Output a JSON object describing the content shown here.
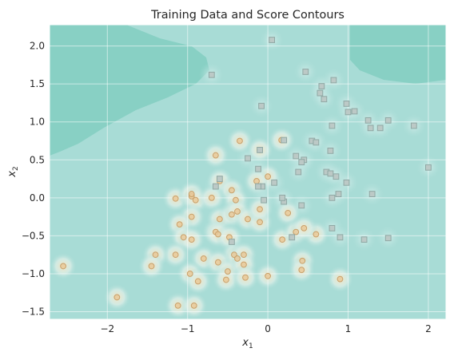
{
  "chart_data": {
    "type": "scatter",
    "title": "Training Data and Score Contours",
    "xlabel": {
      "base": "x",
      "sub": "1"
    },
    "ylabel": {
      "base": "x",
      "sub": "2"
    },
    "xlim": [
      -2.72,
      2.22
    ],
    "ylim": [
      -1.6,
      2.28
    ],
    "xticks": [
      -2,
      -1,
      0,
      1,
      2
    ],
    "yticks": [
      -1.5,
      -1.0,
      -0.5,
      0.0,
      0.5,
      1.0,
      1.5,
      2.0
    ],
    "xtick_labels": [
      "−2",
      "−1",
      "0",
      "1",
      "2"
    ],
    "ytick_labels": [
      "−1.5",
      "−1.0",
      "−0.5",
      "0.0",
      "0.5",
      "1.0",
      "1.5",
      "2.0"
    ],
    "grid": true,
    "colors": {
      "background": "#a8dcd6",
      "high_region": "#88d0c4",
      "hot_contour": "#f7e6c4",
      "circle_fill": "#e8c99a",
      "circle_edge": "#c9a06a",
      "square_fill": "#bcc9c6",
      "square_edge": "#8fa8a4"
    },
    "series": [
      {
        "marker": "circle",
        "points": [
          [
            -0.65,
            0.56
          ],
          [
            -0.35,
            0.75
          ],
          [
            0.17,
            0.76
          ],
          [
            -0.1,
            0.63
          ],
          [
            0.0,
            0.28
          ],
          [
            -0.14,
            0.22
          ],
          [
            -0.6,
            0.22
          ],
          [
            -1.15,
            -0.01
          ],
          [
            -0.95,
            0.02
          ],
          [
            -0.95,
            0.05
          ],
          [
            -0.9,
            -0.03
          ],
          [
            -0.45,
            0.1
          ],
          [
            -0.4,
            -0.03
          ],
          [
            -0.7,
            0.0
          ],
          [
            -0.95,
            -0.25
          ],
          [
            -0.6,
            -0.28
          ],
          [
            -0.45,
            -0.22
          ],
          [
            -0.38,
            -0.18
          ],
          [
            -1.1,
            -0.35
          ],
          [
            -0.65,
            -0.45
          ],
          [
            -0.62,
            -0.48
          ],
          [
            -0.25,
            -0.28
          ],
          [
            -0.1,
            -0.32
          ],
          [
            0.25,
            -0.2
          ],
          [
            -0.1,
            -0.15
          ],
          [
            -1.05,
            -0.52
          ],
          [
            -0.95,
            -0.55
          ],
          [
            -0.48,
            -0.52
          ],
          [
            -0.42,
            -0.75
          ],
          [
            -0.38,
            -0.8
          ],
          [
            -0.3,
            -0.75
          ],
          [
            0.18,
            -0.55
          ],
          [
            0.35,
            -0.45
          ],
          [
            0.6,
            -0.48
          ],
          [
            0.45,
            -0.4
          ],
          [
            -0.8,
            -0.8
          ],
          [
            -0.62,
            -0.85
          ],
          [
            -0.5,
            -0.97
          ],
          [
            -0.3,
            -0.88
          ],
          [
            -1.15,
            -0.75
          ],
          [
            -1.4,
            -0.75
          ],
          [
            -1.45,
            -0.9
          ],
          [
            -0.97,
            -1.0
          ],
          [
            -0.87,
            -1.1
          ],
          [
            -0.52,
            -1.08
          ],
          [
            -0.28,
            -1.05
          ],
          [
            0.0,
            -1.03
          ],
          [
            0.43,
            -0.83
          ],
          [
            0.42,
            -0.95
          ],
          [
            0.9,
            -1.07
          ],
          [
            -2.55,
            -0.9
          ],
          [
            -1.88,
            -1.31
          ],
          [
            -1.12,
            -1.42
          ],
          [
            -0.92,
            -1.42
          ]
        ]
      },
      {
        "marker": "square",
        "points": [
          [
            0.05,
            2.08
          ],
          [
            -0.7,
            1.62
          ],
          [
            0.47,
            1.66
          ],
          [
            0.82,
            1.55
          ],
          [
            0.67,
            1.47
          ],
          [
            0.65,
            1.38
          ],
          [
            0.7,
            1.3
          ],
          [
            -0.08,
            1.21
          ],
          [
            0.98,
            1.24
          ],
          [
            1.08,
            1.14
          ],
          [
            1.0,
            1.13
          ],
          [
            1.25,
            1.02
          ],
          [
            1.5,
            1.02
          ],
          [
            1.28,
            0.92
          ],
          [
            1.4,
            0.92
          ],
          [
            1.82,
            0.95
          ],
          [
            0.8,
            0.95
          ],
          [
            0.55,
            0.75
          ],
          [
            0.6,
            0.73
          ],
          [
            0.78,
            0.62
          ],
          [
            0.45,
            0.5
          ],
          [
            0.42,
            0.47
          ],
          [
            -0.1,
            0.63
          ],
          [
            0.35,
            0.55
          ],
          [
            0.2,
            0.76
          ],
          [
            -0.25,
            0.52
          ],
          [
            -0.12,
            0.38
          ],
          [
            -0.07,
            0.15
          ],
          [
            0.08,
            0.2
          ],
          [
            -0.6,
            0.25
          ],
          [
            -0.65,
            0.15
          ],
          [
            0.38,
            0.34
          ],
          [
            0.73,
            0.34
          ],
          [
            0.78,
            0.32
          ],
          [
            0.85,
            0.28
          ],
          [
            0.98,
            0.2
          ],
          [
            0.88,
            0.05
          ],
          [
            0.8,
            0.0
          ],
          [
            0.42,
            -0.1
          ],
          [
            -0.05,
            -0.03
          ],
          [
            0.2,
            -0.05
          ],
          [
            0.3,
            -0.52
          ],
          [
            1.3,
            0.05
          ],
          [
            2.0,
            0.4
          ],
          [
            0.8,
            -0.4
          ],
          [
            1.2,
            -0.55
          ],
          [
            1.5,
            -0.53
          ],
          [
            0.9,
            -0.52
          ],
          [
            -0.45,
            -0.58
          ],
          [
            0.18,
            0.0
          ],
          [
            -0.12,
            0.15
          ]
        ]
      }
    ]
  }
}
